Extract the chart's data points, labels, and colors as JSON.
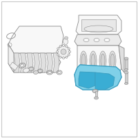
{
  "background_color": "#ffffff",
  "border_color": "#c8c8c8",
  "line_color": "#8a8a8a",
  "fill_color": "#f0f0f0",
  "fill_light": "#f8f8f8",
  "highlight_blue": "#5bbfdf",
  "highlight_blue_dark": "#3a9dbf",
  "highlight_blue_light": "#80d0e8",
  "figsize": [
    2.0,
    2.0
  ],
  "dpi": 100,
  "lw_main": 0.6,
  "lw_thin": 0.4
}
